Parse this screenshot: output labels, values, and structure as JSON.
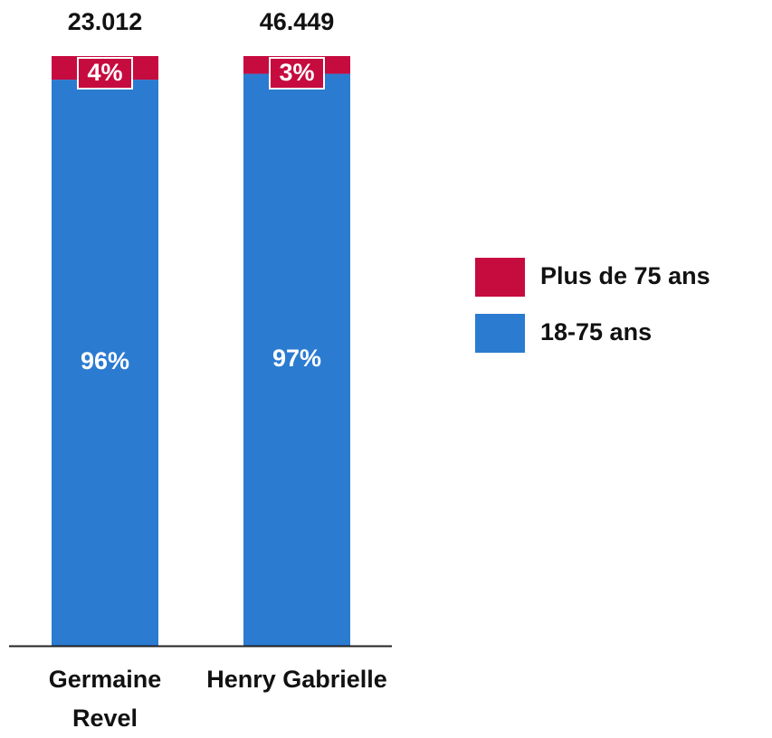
{
  "chart_data": {
    "type": "stacked_bar",
    "categories": [
      "Germaine Revel",
      "Henry Gabrielle"
    ],
    "series": [
      {
        "name": "18-75 ans",
        "color": "#2b7bd1",
        "values": [
          96,
          97
        ],
        "value_labels": [
          "96%",
          "97%"
        ]
      },
      {
        "name": "Plus de 75 ans",
        "color": "#c60b3f",
        "values": [
          4,
          3
        ],
        "value_labels": [
          "4%",
          "3%"
        ]
      }
    ],
    "totals": {
      "values": [
        23012,
        46449
      ],
      "value_labels": [
        "23.012",
        "46.449"
      ]
    },
    "ylim": [
      0,
      100
    ],
    "legend": "right"
  }
}
